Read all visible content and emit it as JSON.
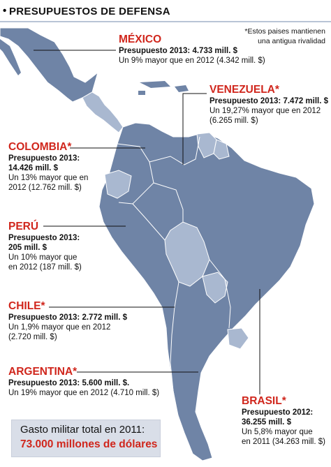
{
  "header": {
    "title": "PRESUPUESTOS DE DEFENSA"
  },
  "footnote": {
    "line1": "*Estos paises mantienen",
    "line2": "una antigua rivalidad"
  },
  "countries": {
    "mexico": {
      "name": "MÉXICO",
      "budget": "Presupuesto 2013: 4.733 mill. $",
      "note1": "Un 9% mayor que en 2012 (4.342 mill. $)"
    },
    "venezuela": {
      "name": "VENEZUELA*",
      "budget": "Presupuesto 2013: 7.472 mill. $",
      "note1": "Un 19,27% mayor que en 2012",
      "note2": "(6.265 mill. $)"
    },
    "colombia": {
      "name": "COLOMBIA*",
      "budget1": "Presupuesto 2013:",
      "budget2": "14.426 mill. $",
      "note1": "Un 13% mayor que en",
      "note2": "2012 (12.762 mill. $)"
    },
    "peru": {
      "name": "PERÚ",
      "budget1": "Presupuesto 2013:",
      "budget2": "205 mill. $",
      "note1": "Un 10% mayor que",
      "note2": "en 2012 (187 mill. $)"
    },
    "chile": {
      "name": "CHILE*",
      "budget": "Presupuesto 2013: 2.772 mill. $",
      "note1": "Un 1,9% mayor que en 2012",
      "note2": "(2.720 mill. $)"
    },
    "argentina": {
      "name": "ARGENTINA*",
      "budget": "Presupuesto 2013: 5.600 mill. $.",
      "note1": "Un 19% mayor que en 2012 (4.710 mill. $)"
    },
    "brasil": {
      "name": "BRASIL*",
      "budget1": "Presupuesto 2012:",
      "budget2": "36.255 mill. $",
      "note1": "Un 5,8% mayor que",
      "note2": "en 2011 (34.263 mill. $)"
    }
  },
  "total": {
    "line1": "Gasto militar total en 2011:",
    "line2": "73.000 millones de dólares"
  },
  "colors": {
    "land_dark": "#6f84a6",
    "land_light": "#a9b8d0",
    "water": "#ffffff",
    "accent_red": "#d0261c"
  }
}
